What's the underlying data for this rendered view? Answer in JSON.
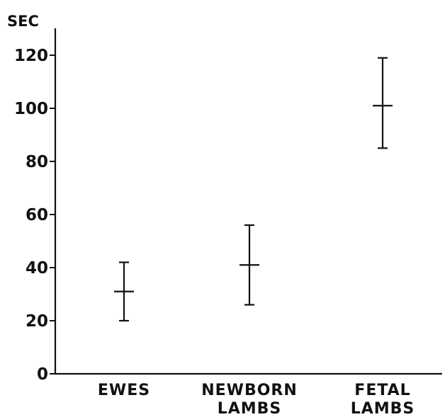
{
  "chart_data": {
    "type": "scatter",
    "title": "",
    "xlabel": "",
    "ylabel": "SEC",
    "ylim": [
      0,
      130
    ],
    "yticks": [
      "0",
      "20",
      "40",
      "60",
      "80",
      "100",
      "120"
    ],
    "categories": [
      [
        "EWES"
      ],
      [
        "NEWBORN",
        "LAMBS"
      ],
      [
        "FETAL",
        "LAMBS"
      ]
    ],
    "series": [
      {
        "values": [
          31,
          41,
          101
        ],
        "lower": [
          20,
          26,
          85
        ],
        "upper": [
          42,
          56,
          119
        ]
      }
    ],
    "grid": false
  }
}
